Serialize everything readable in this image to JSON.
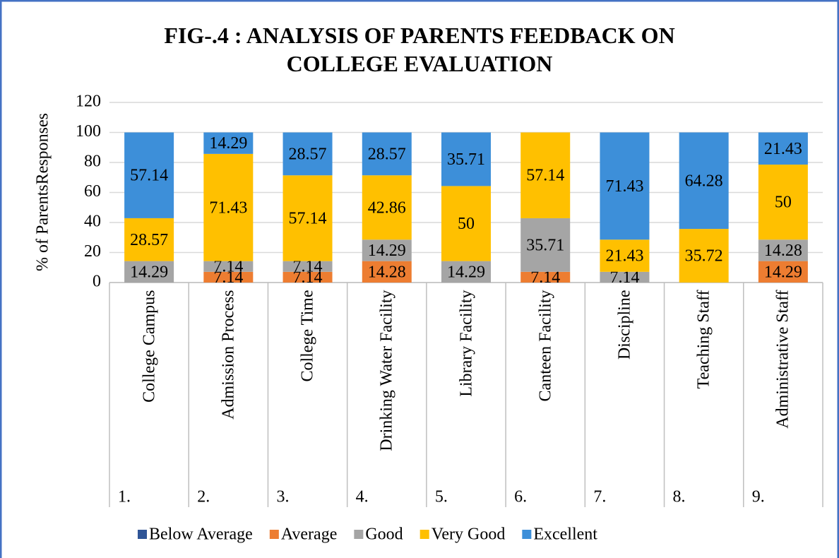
{
  "chart_data": {
    "type": "stacked_bar",
    "title": "FIG-.4 : ANALYSIS OF PARENTS FEEDBACK ON COLLEGE EVALUATION",
    "y_label": "% of ParentsResponses",
    "categories": [
      "College Campus",
      "Admission Process",
      "College Time",
      "Drinking Water Facility",
      "Library Facility",
      "Canteen Facility",
      "Discipline",
      "Teaching Staff",
      "Administrative Staff"
    ],
    "category_numbers": [
      "1.",
      "2.",
      "3.",
      "4.",
      "5.",
      "6.",
      "7.",
      "8.",
      "9."
    ],
    "series": [
      {
        "name": "Below Average",
        "color": "#2f5597",
        "values": [
          null,
          null,
          null,
          null,
          null,
          null,
          null,
          null,
          null
        ]
      },
      {
        "name": "Average",
        "color": "#ed7d31",
        "values": [
          null,
          7.14,
          7.14,
          14.28,
          null,
          7.14,
          null,
          null,
          14.29
        ]
      },
      {
        "name": "Good",
        "color": "#a5a5a5",
        "values": [
          14.29,
          7.14,
          7.14,
          14.29,
          14.29,
          35.71,
          7.14,
          null,
          14.28
        ]
      },
      {
        "name": "Very Good",
        "color": "#ffc000",
        "values": [
          28.57,
          71.43,
          57.14,
          42.86,
          50,
          57.14,
          21.43,
          35.72,
          50
        ]
      },
      {
        "name": "Excellent",
        "color": "#3d8fd9",
        "values": [
          57.14,
          14.29,
          28.57,
          28.57,
          35.71,
          null,
          71.43,
          64.28,
          21.43
        ]
      }
    ],
    "ylim": [
      0,
      120
    ],
    "yticks": [
      0,
      20,
      40,
      60,
      80,
      100,
      120
    ],
    "grid": true,
    "legend": "bottom"
  }
}
